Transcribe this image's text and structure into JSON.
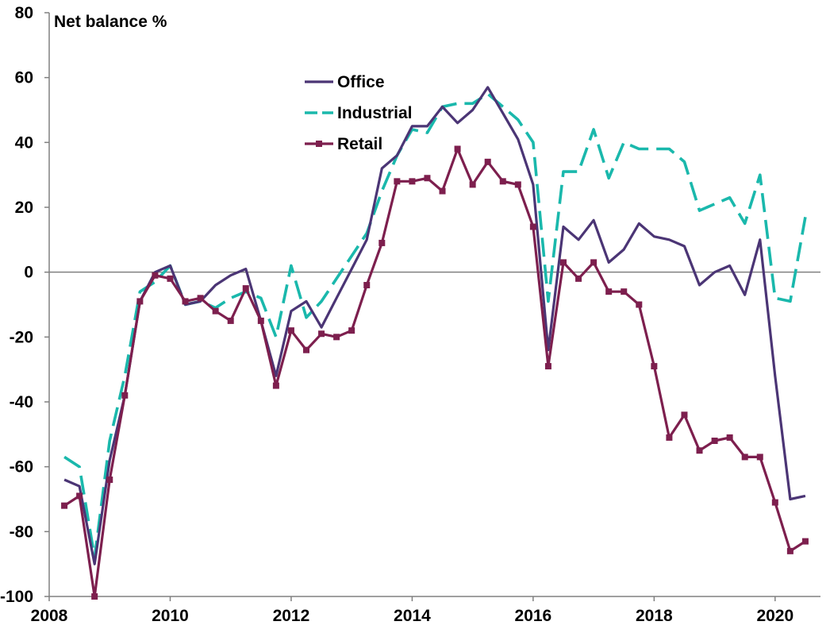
{
  "chart_data": {
    "type": "line",
    "title": "",
    "xlabel": "",
    "ylabel": "Net balance %",
    "xlim": [
      2008,
      2020.75
    ],
    "ylim": [
      -100,
      80
    ],
    "x_ticks": [
      2008,
      2010,
      2012,
      2014,
      2016,
      2018,
      2020
    ],
    "x_tick_labels": [
      "2008",
      "2010",
      "2012",
      "2014",
      "2016",
      "2018",
      "2020"
    ],
    "y_ticks": [
      -100,
      -80,
      -60,
      -40,
      -20,
      0,
      20,
      40,
      60,
      80
    ],
    "y_tick_labels": [
      "-100",
      "-80",
      "-60",
      "-40",
      "-20",
      "0",
      "20",
      "40",
      "60",
      "80"
    ],
    "grid": false,
    "legend_position": "top-center",
    "x": [
      2008.25,
      2008.5,
      2008.75,
      2009.0,
      2009.25,
      2009.5,
      2009.75,
      2010.0,
      2010.25,
      2010.5,
      2010.75,
      2011.0,
      2011.25,
      2011.5,
      2011.75,
      2012.0,
      2012.25,
      2012.5,
      2012.75,
      2013.0,
      2013.25,
      2013.5,
      2013.75,
      2014.0,
      2014.25,
      2014.5,
      2014.75,
      2015.0,
      2015.25,
      2015.5,
      2015.75,
      2016.0,
      2016.25,
      2016.5,
      2016.75,
      2017.0,
      2017.25,
      2017.5,
      2017.75,
      2018.0,
      2018.25,
      2018.5,
      2018.75,
      2019.0,
      2019.25,
      2019.5,
      2019.75,
      2020.0,
      2020.25,
      2020.5
    ],
    "series": [
      {
        "name": "Office",
        "color": "#4b3575",
        "style": "solid",
        "marker": "none",
        "values": [
          -64,
          -66,
          -90,
          -58,
          -38,
          -9,
          0,
          2,
          -10,
          -9,
          -4,
          -1,
          1,
          -15,
          -32,
          -12,
          -9,
          -17,
          -8,
          1,
          10,
          32,
          36,
          45,
          45,
          51,
          46,
          50,
          57,
          49,
          41,
          27,
          -24,
          14,
          10,
          16,
          3,
          7,
          15,
          11,
          10,
          8,
          -4,
          0,
          2,
          -7,
          10,
          -32,
          -70,
          -69
        ]
      },
      {
        "name": "Industrial",
        "color": "#1ab8ac",
        "style": "dashed",
        "marker": "none",
        "values": [
          -57,
          -60,
          -88,
          -52,
          -32,
          -6,
          -3,
          2,
          -10,
          -9,
          -11,
          -8,
          -6,
          -8,
          -20,
          2,
          -14,
          -9,
          -2,
          5,
          12,
          25,
          36,
          44,
          43,
          51,
          52,
          52,
          55,
          51,
          47,
          40,
          -9,
          31,
          31,
          44,
          29,
          40,
          38,
          38,
          38,
          34,
          19,
          21,
          23,
          15,
          30,
          -8,
          -9,
          17
        ]
      },
      {
        "name": "Retail",
        "color": "#7d1f4e",
        "style": "solid",
        "marker": "square",
        "values": [
          -72,
          -69,
          -100,
          -64,
          -38,
          -9,
          -1,
          -2,
          -9,
          -8,
          -12,
          -15,
          -5,
          -15,
          -35,
          -18,
          -24,
          -19,
          -20,
          -18,
          -4,
          9,
          28,
          28,
          29,
          25,
          38,
          27,
          34,
          28,
          27,
          14,
          -29,
          3,
          -2,
          3,
          -6,
          -6,
          -10,
          -29,
          -51,
          -44,
          -55,
          -52,
          -51,
          -57,
          -57,
          -71,
          -86,
          -83
        ]
      }
    ]
  }
}
